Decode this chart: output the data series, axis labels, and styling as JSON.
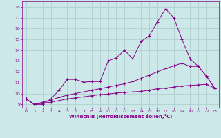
{
  "xlabel": "Windchill (Refroidissement éolien,°C)",
  "bg_color": "#cce8e8",
  "grid_color": "#aacccc",
  "line_color": "#880088",
  "xlim": [
    -0.5,
    23.5
  ],
  "ylim": [
    8.7,
    18.5
  ],
  "xticks": [
    0,
    1,
    2,
    3,
    4,
    5,
    6,
    7,
    8,
    9,
    10,
    11,
    12,
    13,
    14,
    15,
    16,
    17,
    18,
    19,
    20,
    21,
    22,
    23
  ],
  "yticks": [
    9,
    10,
    11,
    12,
    13,
    14,
    15,
    16,
    17,
    18
  ],
  "line1_x": [
    0,
    1,
    2,
    3,
    4,
    5,
    6,
    7,
    8,
    9,
    10,
    11,
    12,
    13,
    14,
    15,
    16,
    17,
    18,
    19,
    20,
    21,
    22,
    23
  ],
  "line1_y": [
    9.5,
    9.0,
    9.0,
    9.5,
    10.3,
    11.3,
    11.3,
    11.05,
    11.1,
    11.1,
    13.0,
    13.3,
    14.0,
    13.2,
    14.8,
    15.3,
    16.6,
    17.8,
    17.0,
    15.0,
    13.2,
    12.5,
    11.6,
    10.5
  ],
  "line2_x": [
    0,
    1,
    2,
    3,
    4,
    5,
    6,
    7,
    8,
    9,
    10,
    11,
    12,
    13,
    14,
    15,
    16,
    17,
    18,
    19,
    20,
    21,
    22,
    23
  ],
  "line2_y": [
    9.5,
    9.0,
    9.2,
    9.4,
    9.65,
    9.85,
    10.0,
    10.15,
    10.3,
    10.45,
    10.6,
    10.75,
    10.9,
    11.1,
    11.4,
    11.7,
    12.0,
    12.3,
    12.55,
    12.8,
    12.5,
    12.5,
    11.6,
    10.5
  ],
  "line3_x": [
    0,
    1,
    2,
    3,
    4,
    5,
    6,
    7,
    8,
    9,
    10,
    11,
    12,
    13,
    14,
    15,
    16,
    17,
    18,
    19,
    20,
    21,
    22,
    23
  ],
  "line3_y": [
    9.5,
    9.0,
    9.1,
    9.2,
    9.35,
    9.5,
    9.6,
    9.7,
    9.8,
    9.9,
    9.95,
    10.05,
    10.1,
    10.15,
    10.2,
    10.3,
    10.45,
    10.5,
    10.6,
    10.7,
    10.75,
    10.8,
    10.85,
    10.5
  ]
}
